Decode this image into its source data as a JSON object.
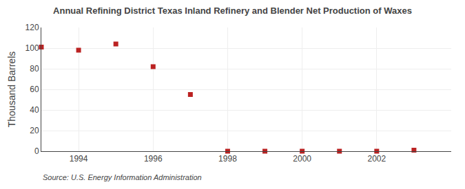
{
  "chart_data": {
    "type": "scatter",
    "title": "Annual Refining District Texas Inland Refinery and Blender Net Production of Waxes",
    "ylabel": "Thousand Barrels",
    "annotations": [
      "Source: U.S. Energy Information Administration"
    ],
    "x": [
      1993,
      1994,
      1995,
      1996,
      1997,
      1998,
      1999,
      2000,
      2001,
      2002,
      2003
    ],
    "values": [
      101,
      98,
      104,
      82,
      55,
      0,
      0,
      0,
      0,
      0,
      1
    ],
    "color": "#bb2222",
    "marker": "square",
    "xlim": [
      1993,
      2004
    ],
    "xticks": [
      1994,
      1996,
      1998,
      2000,
      2002
    ],
    "ylim": [
      0,
      120
    ],
    "yticks": [
      0,
      20,
      40,
      60,
      80,
      100,
      120
    ],
    "grid": true
  }
}
